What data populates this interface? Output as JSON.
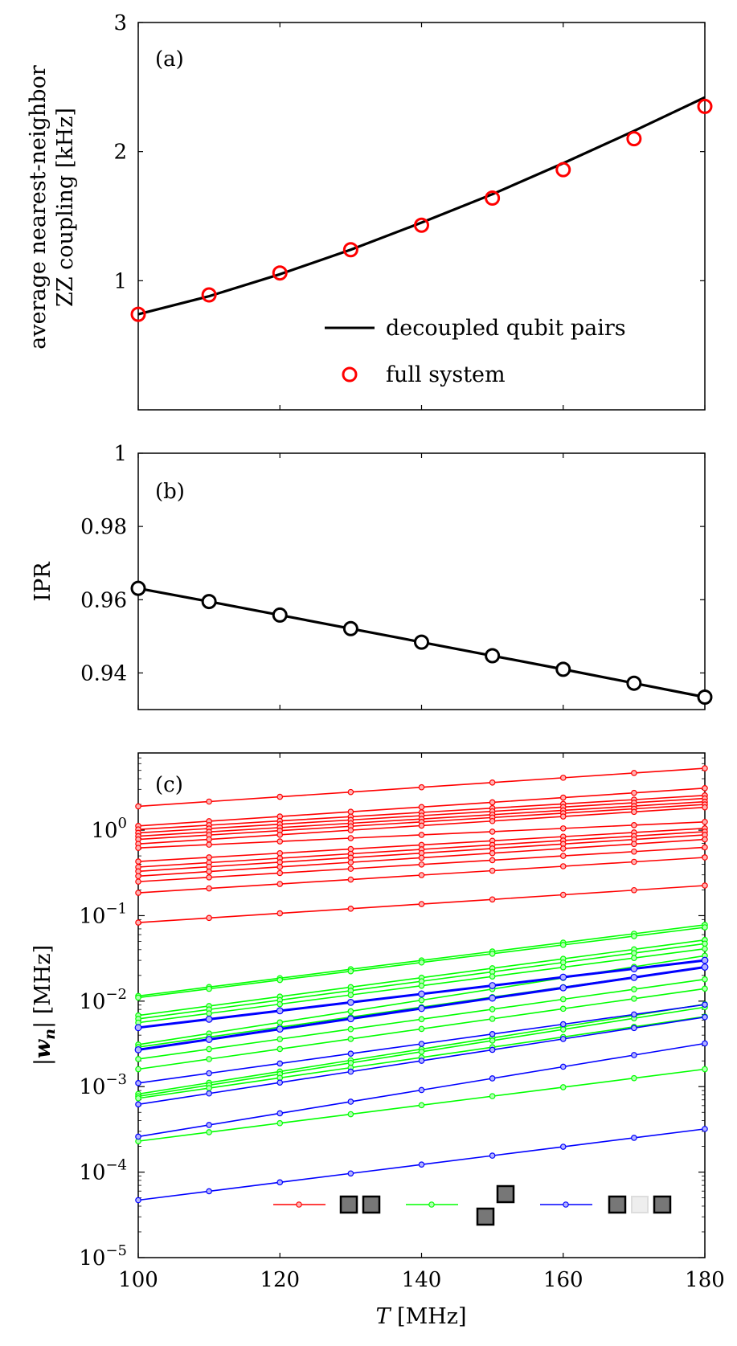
{
  "chart_data": [
    {
      "type": "line",
      "panel": "(a)",
      "ylabel_line1": "average nearest-neighbor",
      "ylabel_line2": "ZZ coupling [kHz]",
      "xlim": [
        100,
        180
      ],
      "ylim": [
        0,
        3
      ],
      "yticks": [
        "1",
        "2",
        "3"
      ],
      "legend_position": "bottom-right",
      "series": [
        {
          "name": "decoupled qubit pairs",
          "style": "line",
          "color": "#000000",
          "x": [
            100,
            110,
            120,
            130,
            140,
            150,
            160,
            170,
            180
          ],
          "values": [
            0.74,
            0.88,
            1.05,
            1.24,
            1.45,
            1.67,
            1.91,
            2.16,
            2.42
          ]
        },
        {
          "name": "full system",
          "style": "markers",
          "color": "#ff0000",
          "x": [
            100,
            110,
            120,
            130,
            140,
            150,
            160,
            170,
            180
          ],
          "values": [
            0.74,
            0.89,
            1.06,
            1.24,
            1.43,
            1.64,
            1.86,
            2.1,
            2.35
          ]
        }
      ]
    },
    {
      "type": "line",
      "panel": "(b)",
      "ylabel": "IPR",
      "xlim": [
        100,
        180
      ],
      "ylim": [
        0.93,
        1.0
      ],
      "yticks": [
        "0.94",
        "0.96",
        "0.98",
        "1"
      ],
      "series": [
        {
          "style": "line+markers",
          "color": "#000000",
          "x": [
            100,
            110,
            120,
            130,
            140,
            150,
            160,
            170,
            180
          ],
          "values": [
            0.9631,
            0.9595,
            0.9558,
            0.9521,
            0.9484,
            0.9447,
            0.941,
            0.9372,
            0.9334
          ]
        }
      ]
    },
    {
      "type": "line",
      "panel": "(c)",
      "ylabel": "|w_n| [MHz]",
      "xlabel": "T [MHz]",
      "xlim": [
        100,
        180
      ],
      "xticks": [
        "100",
        "120",
        "140",
        "160",
        "180"
      ],
      "yscale": "log",
      "ylim": [
        1e-05,
        8
      ],
      "yticks": [
        "10^0",
        "10^−1",
        "10^−2",
        "10^−3",
        "10^−4",
        "10^−5"
      ],
      "legend_position": "bottom-right",
      "legend_colors": [
        "#ff0000",
        "#00ff00",
        "#0000ff"
      ],
      "x": [
        100,
        110,
        120,
        130,
        140,
        150,
        160,
        170,
        180
      ],
      "series": [
        {
          "color": "#ff0000",
          "start": 1.9,
          "end": 5.3
        },
        {
          "color": "#ff0000",
          "start": 1.12,
          "end": 3.1
        },
        {
          "color": "#ff0000",
          "start": 1.02,
          "end": 2.55
        },
        {
          "color": "#ff0000",
          "start": 0.93,
          "end": 2.35
        },
        {
          "color": "#ff0000",
          "start": 0.85,
          "end": 2.15
        },
        {
          "color": "#ff0000",
          "start": 0.78,
          "end": 2.0
        },
        {
          "color": "#ff0000",
          "start": 0.69,
          "end": 1.85
        },
        {
          "color": "#ff0000",
          "start": 0.62,
          "end": 1.25
        },
        {
          "color": "#ff0000",
          "start": 0.43,
          "end": 1.05
        },
        {
          "color": "#ff0000",
          "start": 0.37,
          "end": 0.96
        },
        {
          "color": "#ff0000",
          "start": 0.33,
          "end": 0.88
        },
        {
          "color": "#ff0000",
          "start": 0.29,
          "end": 0.78
        },
        {
          "color": "#ff0000",
          "start": 0.25,
          "end": 0.63
        },
        {
          "color": "#ff0000",
          "start": 0.185,
          "end": 0.48
        },
        {
          "color": "#ff0000",
          "start": 0.083,
          "end": 0.225
        },
        {
          "color": "#00ff00",
          "start": 0.0115,
          "end": 0.078
        },
        {
          "color": "#00ff00",
          "start": 0.011,
          "end": 0.073
        },
        {
          "color": "#00ff00",
          "start": 0.0068,
          "end": 0.052
        },
        {
          "color": "#00ff00",
          "start": 0.0062,
          "end": 0.047
        },
        {
          "color": "#00ff00",
          "start": 0.0056,
          "end": 0.041
        },
        {
          "color": "#00ff00",
          "start": 0.0031,
          "end": 0.034
        },
        {
          "color": "#00ff00",
          "start": 0.0029,
          "end": 0.025
        },
        {
          "color": "#00ff00",
          "start": 0.0021,
          "end": 0.018
        },
        {
          "color": "#00ff00",
          "start": 0.0016,
          "end": 0.014
        },
        {
          "color": "#00ff00",
          "start": 0.00082,
          "end": 0.0092
        },
        {
          "color": "#00ff00",
          "start": 0.00077,
          "end": 0.0085
        },
        {
          "color": "#00ff00",
          "start": 0.00073,
          "end": 0.0066
        },
        {
          "color": "#00ff00",
          "start": 0.00023,
          "end": 0.0016
        },
        {
          "color": "#0000ff",
          "start": 0.0049,
          "end": 0.03,
          "bold": true
        },
        {
          "color": "#0000ff",
          "start": 0.0027,
          "end": 0.025,
          "bold": true
        },
        {
          "color": "#0000ff",
          "start": 0.0011,
          "end": 0.0091
        },
        {
          "color": "#0000ff",
          "start": 0.00062,
          "end": 0.0065
        },
        {
          "color": "#0000ff",
          "start": 0.00026,
          "end": 0.0032
        },
        {
          "color": "#0000ff",
          "start": 4.7e-05,
          "end": 0.00032
        }
      ]
    }
  ]
}
